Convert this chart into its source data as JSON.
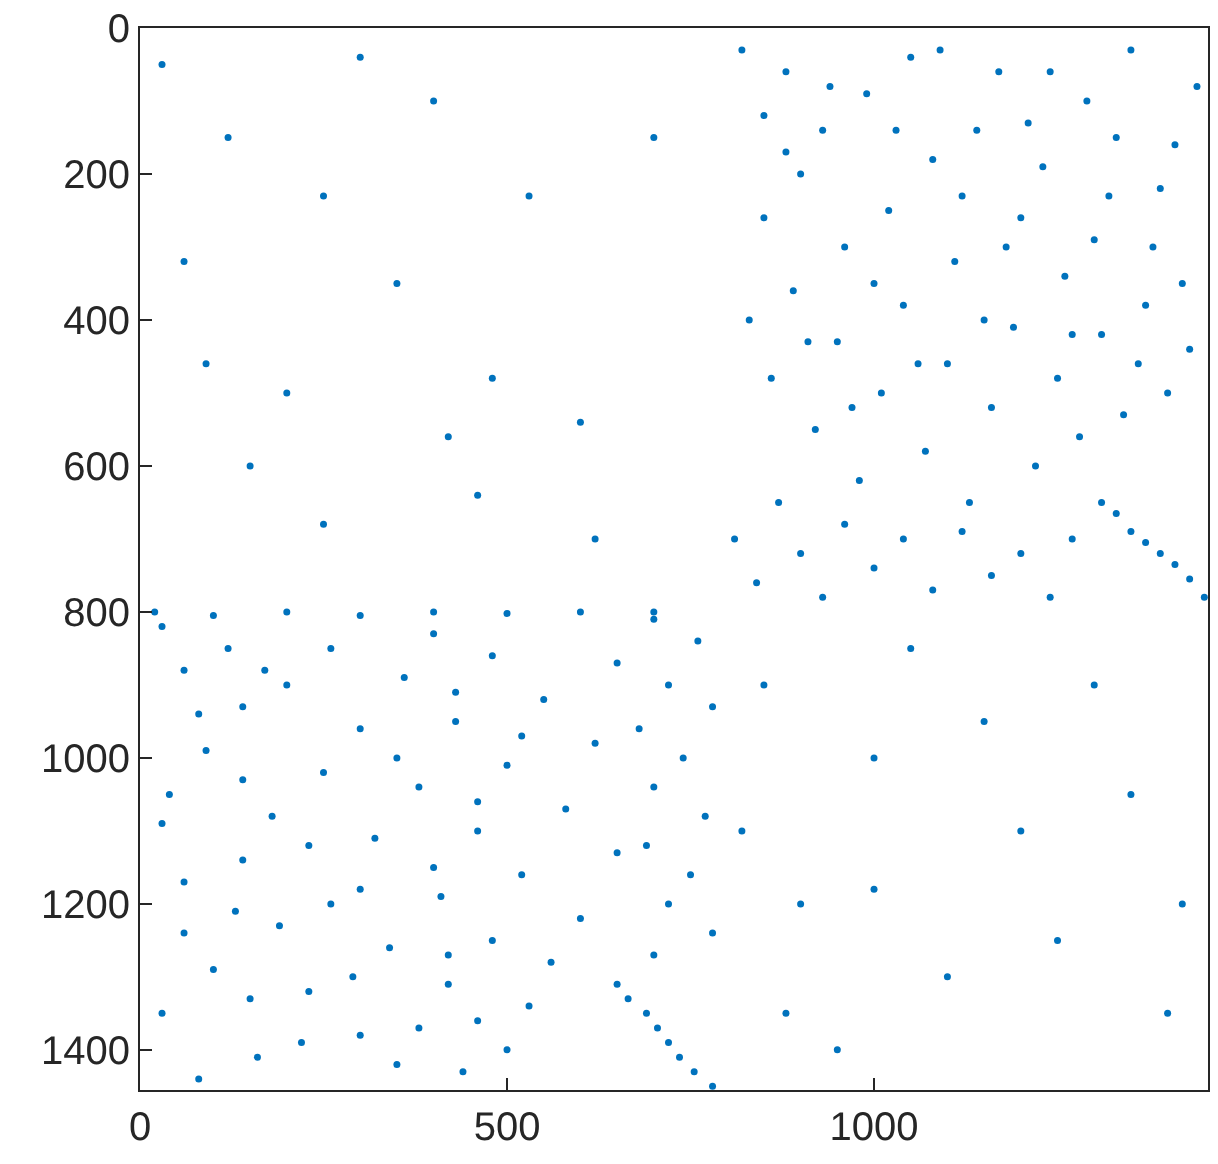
{
  "chart_data": {
    "type": "scatter",
    "xlim": [
      0,
      1455
    ],
    "ylim": [
      1455,
      0
    ],
    "xticks": [
      0,
      500,
      1000
    ],
    "yticks": [
      0,
      200,
      400,
      600,
      800,
      1000,
      1200,
      1400
    ],
    "marker": "circle",
    "series": [
      {
        "color": "#0072bd",
        "x": [
          820,
          850,
          880,
          900,
          930,
          960,
          990,
          1020,
          1050,
          1080,
          1110,
          1140,
          1170,
          1200,
          1230,
          1260,
          1290,
          1320,
          1350,
          1380,
          1410,
          1440,
          830,
          860,
          890,
          920,
          950,
          980,
          1010,
          1040,
          1070,
          1100,
          1130,
          1160,
          1190,
          1220,
          1250,
          1280,
          1310,
          1340,
          1370,
          1400,
          1430,
          810,
          840,
          870,
          900,
          930,
          960,
          1000,
          1040,
          1080,
          1120,
          1160,
          1200,
          1240,
          1270,
          850,
          880,
          910,
          940,
          970,
          1000,
          1030,
          1060,
          1090,
          1120,
          1150,
          1180,
          1210,
          1240,
          1270,
          1300,
          1330,
          1360,
          1390,
          1420,
          1310,
          1330,
          1350,
          1370,
          1390,
          1410,
          1430,
          1450,
          30,
          120,
          60,
          200,
          140,
          300,
          90,
          250,
          40,
          180,
          320,
          140,
          60,
          260,
          190,
          340,
          100,
          230,
          30,
          300,
          160,
          80,
          400,
          480,
          360,
          550,
          430,
          620,
          500,
          380,
          580,
          460,
          650,
          520,
          410,
          600,
          480,
          560,
          420,
          530,
          380,
          500,
          440,
          700,
          760,
          650,
          720,
          780,
          680,
          740,
          700,
          770,
          690,
          750,
          720,
          780,
          700,
          260,
          170,
          430,
          80,
          520,
          350,
          140,
          460,
          30,
          230,
          400,
          300,
          130,
          60,
          420,
          290,
          150,
          460,
          220,
          350,
          650,
          665,
          690,
          705,
          720,
          735,
          755,
          780,
          20,
          100,
          200,
          300,
          400,
          500,
          600,
          700,
          30,
          120,
          250,
          400,
          480,
          60,
          200,
          350,
          530,
          600,
          150,
          300,
          460,
          700,
          90,
          620,
          250,
          420,
          850,
          1000,
          1200,
          1400,
          900,
          1100,
          1300,
          950,
          1250,
          1050,
          1350,
          820,
          1150,
          1420,
          880,
          1000
        ],
        "values": [
          30,
          120,
          60,
          200,
          140,
          300,
          90,
          250,
          40,
          180,
          320,
          140,
          60,
          260,
          190,
          340,
          100,
          230,
          30,
          300,
          160,
          80,
          400,
          480,
          360,
          550,
          430,
          620,
          500,
          380,
          580,
          460,
          650,
          520,
          410,
          600,
          480,
          560,
          420,
          530,
          380,
          500,
          440,
          700,
          760,
          650,
          720,
          780,
          680,
          740,
          700,
          770,
          690,
          750,
          720,
          780,
          700,
          260,
          170,
          430,
          80,
          520,
          350,
          140,
          460,
          30,
          230,
          400,
          300,
          130,
          60,
          420,
          290,
          150,
          460,
          220,
          350,
          650,
          665,
          690,
          705,
          720,
          735,
          755,
          780,
          820,
          850,
          880,
          900,
          930,
          960,
          990,
          1020,
          1050,
          1080,
          1110,
          1140,
          1170,
          1200,
          1230,
          1260,
          1290,
          1320,
          1350,
          1380,
          1410,
          1440,
          830,
          860,
          890,
          920,
          950,
          980,
          1010,
          1040,
          1070,
          1100,
          1130,
          1160,
          1190,
          1220,
          1250,
          1280,
          1310,
          1340,
          1370,
          1400,
          1430,
          810,
          840,
          870,
          900,
          930,
          960,
          1000,
          1040,
          1080,
          1120,
          1160,
          1200,
          1240,
          1270,
          850,
          880,
          910,
          940,
          970,
          1000,
          1030,
          1060,
          1090,
          1120,
          1150,
          1180,
          1210,
          1240,
          1270,
          1300,
          1330,
          1360,
          1390,
          1420,
          1310,
          1330,
          1350,
          1370,
          1390,
          1410,
          1430,
          1450,
          800,
          805,
          800,
          805,
          800,
          802,
          800,
          800,
          50,
          150,
          230,
          100,
          480,
          320,
          500,
          350,
          230,
          540,
          600,
          40,
          640,
          150,
          460,
          700,
          680,
          560,
          900,
          1000,
          1100,
          1350,
          1200,
          1300,
          900,
          1400,
          1250,
          850,
          1050,
          1100,
          950,
          1200,
          1350,
          1180
        ]
      }
    ]
  }
}
